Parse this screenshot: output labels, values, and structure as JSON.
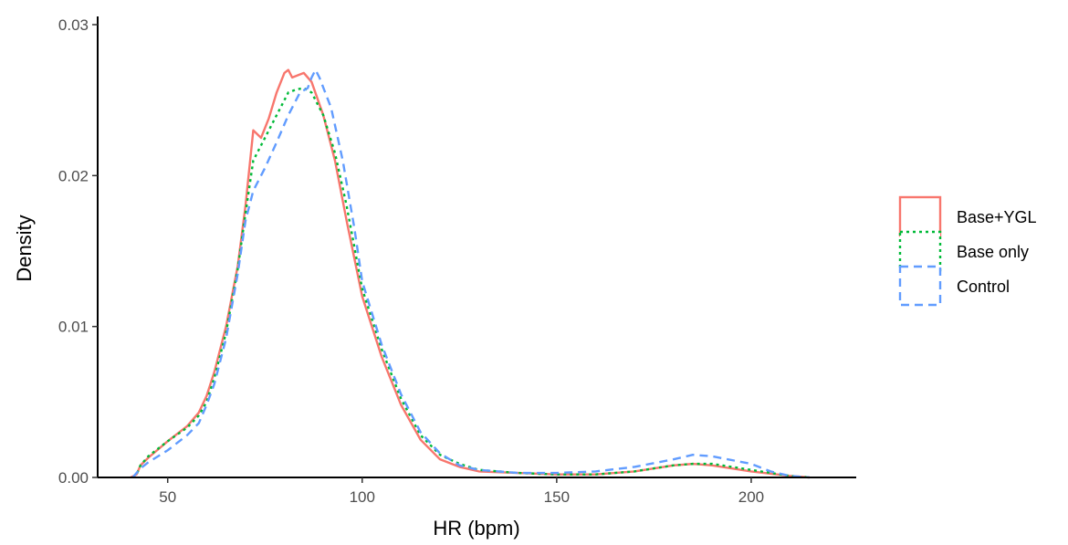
{
  "chart_data": {
    "type": "line",
    "xlabel": "HR (bpm)",
    "ylabel": "Density",
    "xlim": [
      32,
      227
    ],
    "ylim": [
      0,
      0.03
    ],
    "x_ticks": [
      50,
      100,
      150,
      200
    ],
    "x_tick_labels": [
      "50",
      "100",
      "150",
      "200"
    ],
    "y_ticks": [
      0,
      0.01,
      0.02,
      0.03
    ],
    "y_tick_labels": [
      "0.00",
      "0.01",
      "0.02",
      "0.03"
    ],
    "grid": false,
    "legend_position": "right",
    "series": [
      {
        "name": "Base+YGL",
        "color": "#F8766D",
        "dash": "solid",
        "points": [
          [
            40.5,
            0.0
          ],
          [
            42,
            0.0002
          ],
          [
            43,
            0.0008
          ],
          [
            45,
            0.0013
          ],
          [
            50,
            0.0024
          ],
          [
            55,
            0.0034
          ],
          [
            58,
            0.0043
          ],
          [
            60,
            0.0054
          ],
          [
            62,
            0.007
          ],
          [
            65,
            0.01
          ],
          [
            68,
            0.014
          ],
          [
            70,
            0.018
          ],
          [
            72,
            0.023
          ],
          [
            74,
            0.0225
          ],
          [
            76,
            0.0238
          ],
          [
            78,
            0.0255
          ],
          [
            80,
            0.0268
          ],
          [
            81,
            0.027
          ],
          [
            82,
            0.0265
          ],
          [
            85,
            0.0268
          ],
          [
            87,
            0.0262
          ],
          [
            90,
            0.024
          ],
          [
            93,
            0.021
          ],
          [
            96,
            0.017
          ],
          [
            100,
            0.012
          ],
          [
            105,
            0.008
          ],
          [
            110,
            0.0048
          ],
          [
            115,
            0.0025
          ],
          [
            120,
            0.0012
          ],
          [
            125,
            0.0007
          ],
          [
            130,
            0.0004
          ],
          [
            140,
            0.0003
          ],
          [
            150,
            0.0002
          ],
          [
            160,
            0.0002
          ],
          [
            170,
            0.0004
          ],
          [
            180,
            0.0008
          ],
          [
            185,
            0.0009
          ],
          [
            190,
            0.0008
          ],
          [
            200,
            0.0004
          ],
          [
            210,
            0.0001
          ],
          [
            215,
            0.0
          ]
        ]
      },
      {
        "name": "Base only",
        "color": "#00BA38",
        "dash": "dotted",
        "points": [
          [
            41,
            0.0
          ],
          [
            42,
            0.0002
          ],
          [
            43,
            0.0008
          ],
          [
            45,
            0.0014
          ],
          [
            50,
            0.0024
          ],
          [
            55,
            0.0033
          ],
          [
            58,
            0.0041
          ],
          [
            60,
            0.005
          ],
          [
            62,
            0.0066
          ],
          [
            65,
            0.0096
          ],
          [
            68,
            0.0138
          ],
          [
            70,
            0.0175
          ],
          [
            72,
            0.021
          ],
          [
            75,
            0.0225
          ],
          [
            78,
            0.024
          ],
          [
            81,
            0.0255
          ],
          [
            83,
            0.0257
          ],
          [
            85,
            0.0258
          ],
          [
            87,
            0.0255
          ],
          [
            90,
            0.024
          ],
          [
            93,
            0.0215
          ],
          [
            96,
            0.018
          ],
          [
            100,
            0.0125
          ],
          [
            105,
            0.0085
          ],
          [
            110,
            0.0052
          ],
          [
            115,
            0.0028
          ],
          [
            120,
            0.0015
          ],
          [
            125,
            0.0009
          ],
          [
            130,
            0.0005
          ],
          [
            140,
            0.0003
          ],
          [
            150,
            0.0002
          ],
          [
            160,
            0.0002
          ],
          [
            170,
            0.0004
          ],
          [
            180,
            0.0008
          ],
          [
            185,
            0.0009
          ],
          [
            190,
            0.0009
          ],
          [
            200,
            0.0005
          ],
          [
            210,
            0.0001
          ],
          [
            215,
            0.0
          ]
        ]
      },
      {
        "name": "Control",
        "color": "#619CFF",
        "dash": "dashed",
        "points": [
          [
            41,
            0.0
          ],
          [
            42,
            0.0003
          ],
          [
            43,
            0.0006
          ],
          [
            45,
            0.001
          ],
          [
            50,
            0.0018
          ],
          [
            55,
            0.0028
          ],
          [
            58,
            0.0036
          ],
          [
            60,
            0.0048
          ],
          [
            62,
            0.0062
          ],
          [
            65,
            0.0092
          ],
          [
            68,
            0.0135
          ],
          [
            70,
            0.017
          ],
          [
            72,
            0.019
          ],
          [
            75,
            0.0205
          ],
          [
            78,
            0.0222
          ],
          [
            81,
            0.024
          ],
          [
            84,
            0.0255
          ],
          [
            86,
            0.0258
          ],
          [
            87,
            0.0265
          ],
          [
            88,
            0.027
          ],
          [
            89,
            0.0265
          ],
          [
            92,
            0.0245
          ],
          [
            95,
            0.021
          ],
          [
            98,
            0.0165
          ],
          [
            100,
            0.013
          ],
          [
            105,
            0.0088
          ],
          [
            110,
            0.0055
          ],
          [
            115,
            0.003
          ],
          [
            120,
            0.0016
          ],
          [
            125,
            0.0008
          ],
          [
            130,
            0.0005
          ],
          [
            140,
            0.0003
          ],
          [
            150,
            0.0003
          ],
          [
            160,
            0.0004
          ],
          [
            170,
            0.0007
          ],
          [
            180,
            0.0012
          ],
          [
            185,
            0.0015
          ],
          [
            190,
            0.0014
          ],
          [
            200,
            0.0009
          ],
          [
            205,
            0.0004
          ],
          [
            210,
            0.0001
          ],
          [
            215,
            0.0
          ]
        ]
      }
    ]
  }
}
